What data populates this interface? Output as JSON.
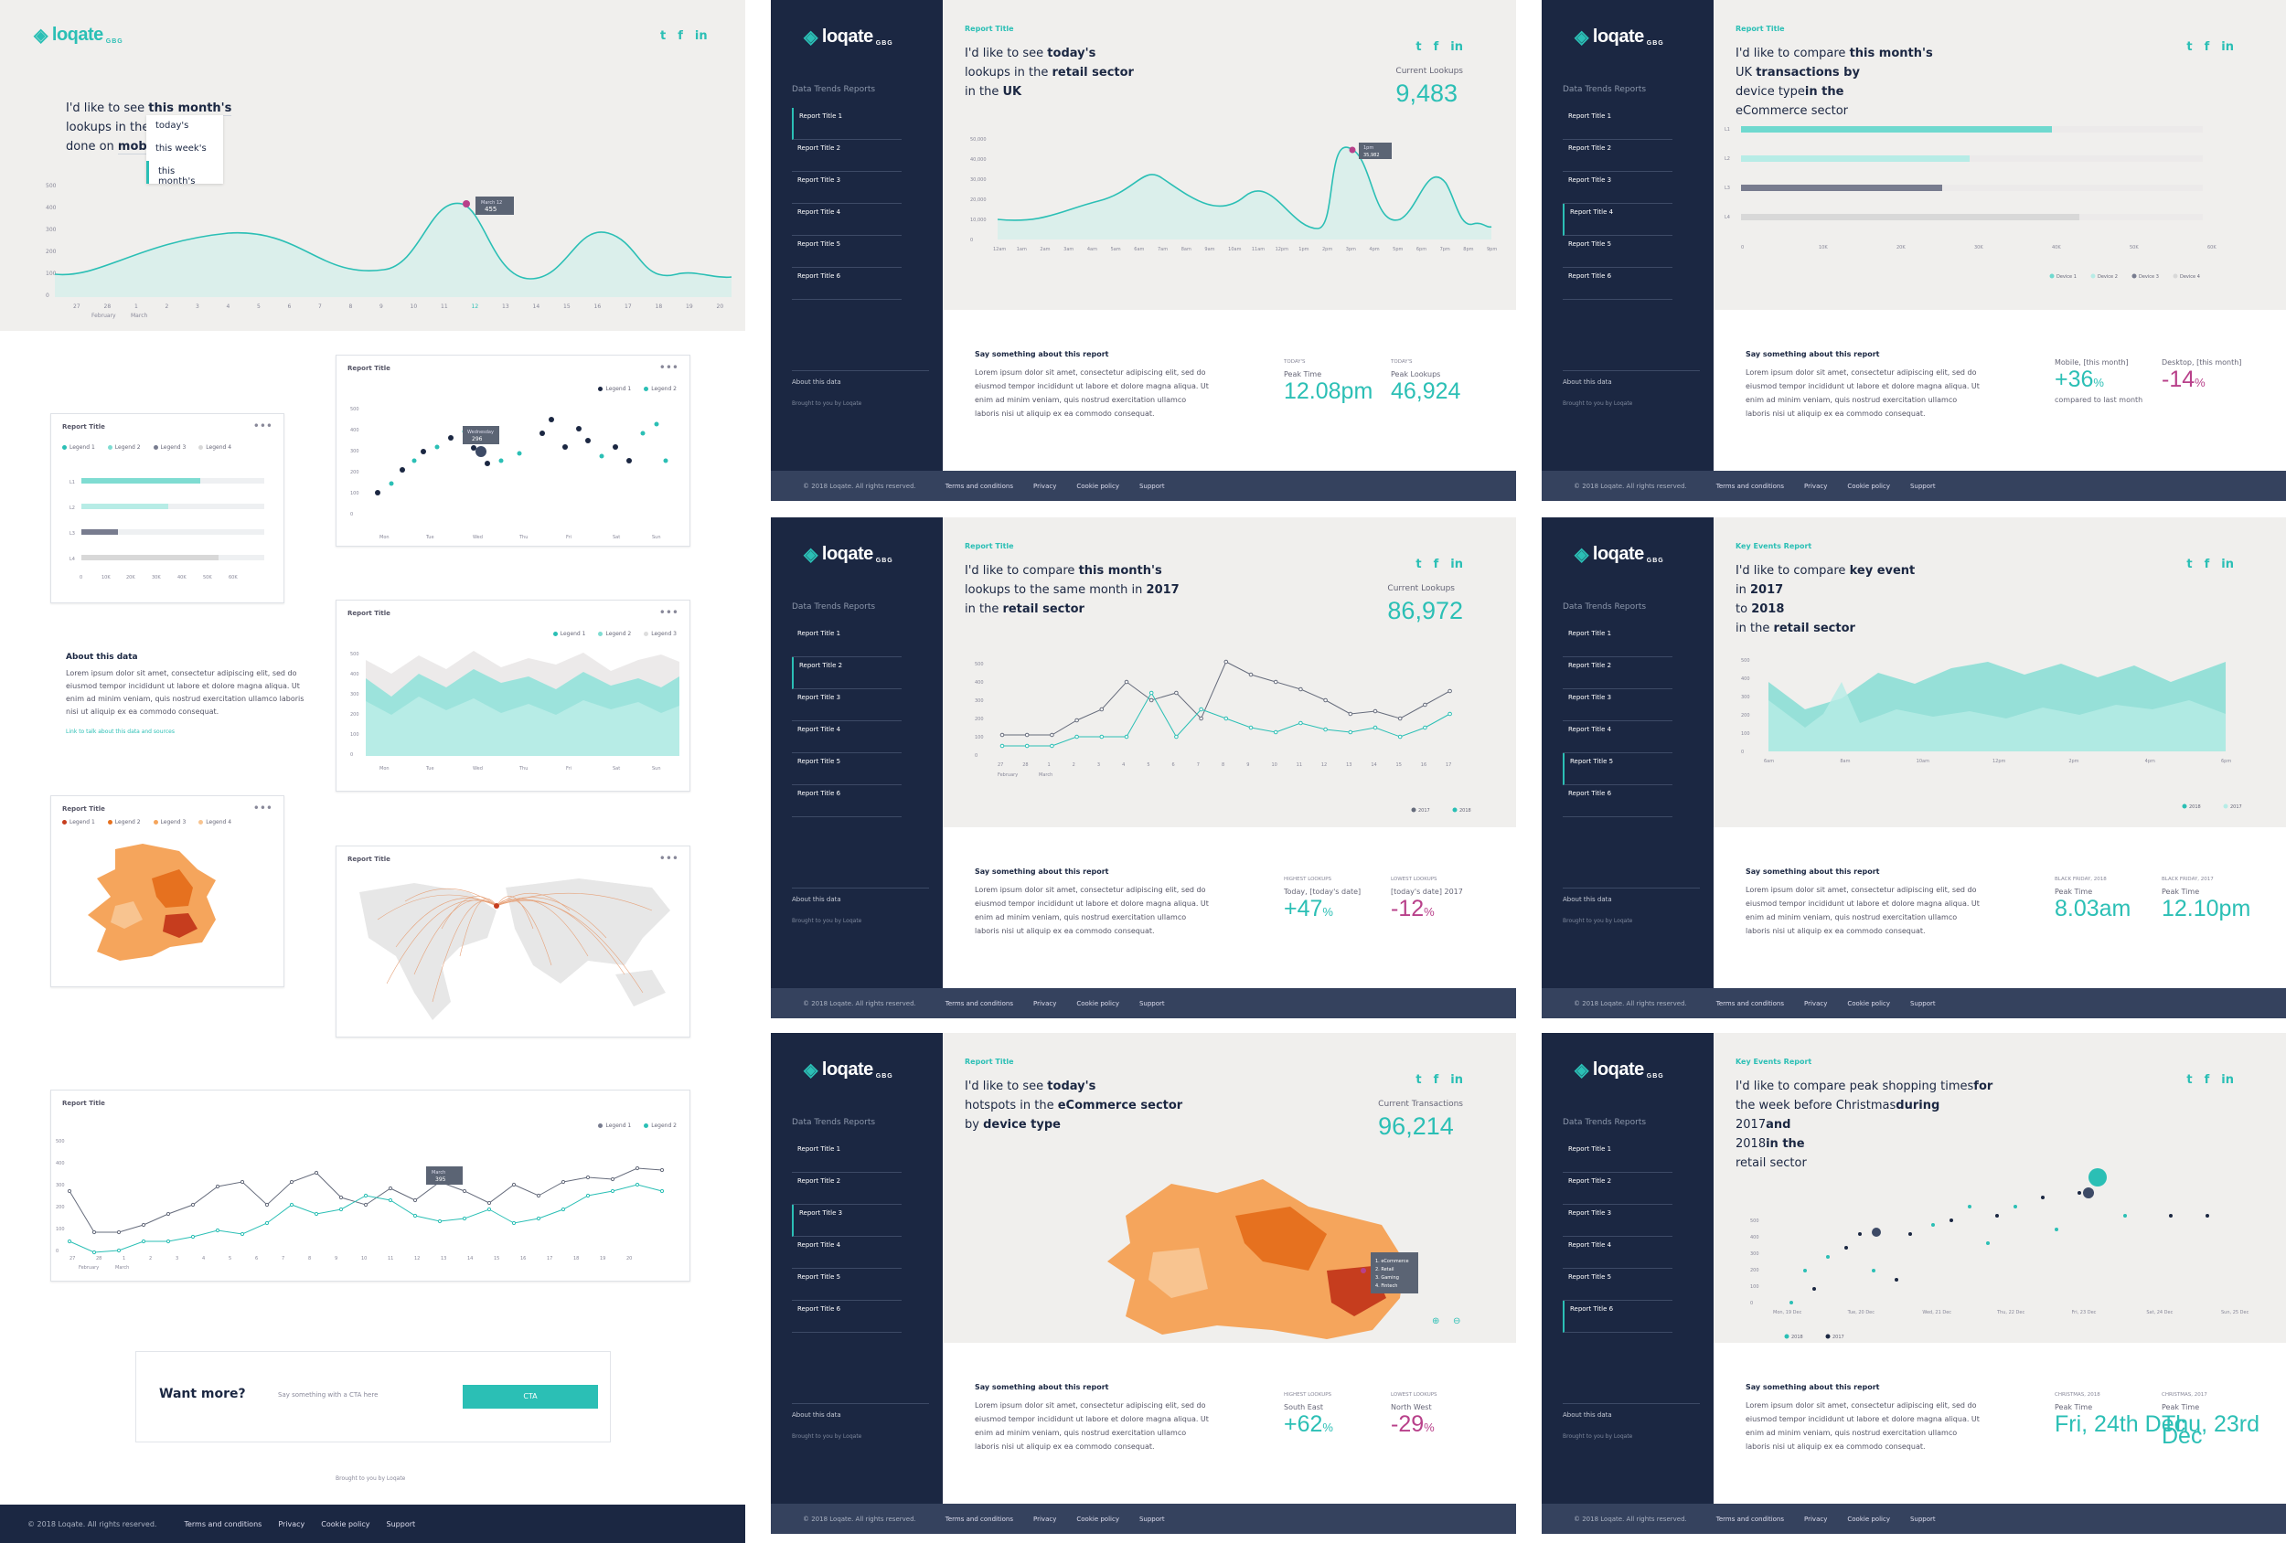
{
  "brand": {
    "logo": "loqate",
    "sub": "GBG"
  },
  "social": [
    "t",
    "f",
    "in"
  ],
  "hero": {
    "q1": "I'd like to see ",
    "b1": "this month's",
    "q2": "lookups in the ",
    "b2": "",
    "q3": "done on ",
    "b3": "mobi",
    "dropdown": [
      "today's",
      "this week's",
      "this month's"
    ],
    "tooltip_label": "March 12",
    "tooltip_value": "455",
    "yticks": [
      "500",
      "400",
      "300",
      "200",
      "100",
      "0"
    ],
    "xticks": [
      "27",
      "28",
      "1",
      "2",
      "3",
      "4",
      "5",
      "6",
      "7",
      "8",
      "9",
      "10",
      "11",
      "12",
      "13",
      "14",
      "15",
      "16",
      "17",
      "18",
      "19",
      "20"
    ],
    "months": [
      "February",
      "March"
    ]
  },
  "cards": {
    "hbar": {
      "title": "Report Title",
      "more": "•••",
      "legend": [
        "Legend 1",
        "Legend 2",
        "Legend 3",
        "Legend 4"
      ],
      "rows": [
        "L1",
        "L2",
        "L3",
        "L4"
      ],
      "xticks": [
        "0",
        "10K",
        "20K",
        "30K",
        "40K",
        "50K",
        "60K"
      ]
    },
    "scatter": {
      "title": "Report Title",
      "more": "•••",
      "legend": [
        "Legend 1",
        "Legend 2"
      ],
      "yticks": [
        "500",
        "400",
        "300",
        "200",
        "100",
        "0"
      ],
      "xticks": [
        "Mon",
        "Tue",
        "Wed",
        "Thu",
        "Fri",
        "Sat",
        "Sun"
      ],
      "tip_label": "Wednesday",
      "tip_value": "296"
    },
    "area": {
      "title": "Report Title",
      "more": "•••",
      "legend": [
        "Legend 1",
        "Legend 2",
        "Legend 3"
      ],
      "yticks": [
        "500",
        "400",
        "300",
        "200",
        "100",
        "0"
      ],
      "xticks": [
        "Mon",
        "Tue",
        "Wed",
        "Thu",
        "Fri",
        "Sat",
        "Sun"
      ]
    },
    "map": {
      "title": "Report Title",
      "more": "•••",
      "legend": [
        "Legend 1",
        "Legend 2",
        "Legend 3",
        "Legend 4"
      ]
    },
    "world": {
      "title": "Report Title",
      "more": "•••"
    },
    "line": {
      "title": "Report Title",
      "more": "•••",
      "legend": [
        "Legend 1",
        "Legend 2"
      ],
      "tip_label": "March",
      "tip_value": "395"
    }
  },
  "about": {
    "title": "About this data",
    "text": "Lorem ipsum dolor sit amet, consectetur adipiscing elit, sed do eiusmod tempor incididunt ut labore et dolore magna aliqua. Ut enim ad minim veniam, quis nostrud exercitation ullamco laboris nisi ut aliquip ex ea commodo consequat.",
    "link": "Link to talk about this data and sources"
  },
  "cta": {
    "title": "Want more?",
    "sub": "Say something with a CTA here",
    "button": "CTA",
    "brought": "Brought to you by Loqate"
  },
  "footer": {
    "copy": "© 2018 Loqate. All rights reserved.",
    "links": [
      "Terms and conditions",
      "Privacy",
      "Cookie policy",
      "Support"
    ]
  },
  "sidebar": {
    "heading": "Data Trends Reports",
    "items": [
      "Report Title 1",
      "Report Title 2",
      "Report Title 3",
      "Report Title 4",
      "Report Title 5",
      "Report Title 6"
    ],
    "about": "About this data",
    "brought": "Brought to you by Loqate"
  },
  "say": {
    "title": "Say something about this report",
    "text": "Lorem ipsum dolor sit amet, consectetur adipiscing elit, sed do eiusmod tempor incididunt ut labore et dolore magna aliqua. Ut enim ad minim veniam, quis nostrud exercitation ullamco laboris nisi ut aliquip ex ea commodo consequat."
  },
  "panels": [
    {
      "label": "Report Title",
      "q": [
        "I'd like to see ",
        "today's",
        "lookups in the ",
        "retail sector",
        "in the ",
        "UK"
      ],
      "cur_label": "Current Lookups",
      "cur_value": "9,483",
      "stats": [
        {
          "k": "Today's",
          "l": "Peak Time",
          "v": "12.08pm"
        },
        {
          "k": "Today's",
          "l": "Peak Lookups",
          "v": "46,924"
        }
      ],
      "yticks": [
        "50,000",
        "40,000",
        "30,000",
        "20,000",
        "10,000",
        "0"
      ],
      "xticks": [
        "12am",
        "1am",
        "2am",
        "3am",
        "4am",
        "5am",
        "6am",
        "7am",
        "8am",
        "9am",
        "10am",
        "11am",
        "12pm",
        "1pm",
        "2pm",
        "3pm",
        "4pm",
        "5pm",
        "6pm",
        "7pm",
        "8pm",
        "9pm"
      ],
      "tip_label": "1pm",
      "tip_value": "35,982"
    },
    {
      "label": "Report Title",
      "q": [
        "I'd like to compare ",
        "this month's",
        "UK ",
        "transactions by ",
        "device type",
        "in the ",
        "eCommerce sector"
      ],
      "stats": [
        {
          "l": "Mobile, [this month]",
          "v": "+36",
          "u": "%",
          "m": false,
          "cmp": "compared to last month"
        },
        {
          "l": "Desktop, [this month]",
          "v": "-14",
          "u": "%",
          "m": true
        }
      ],
      "rows": [
        "L1",
        "L2",
        "L3",
        "L4"
      ],
      "xticks": [
        "0",
        "10K",
        "20K",
        "30K",
        "40K",
        "50K",
        "60K"
      ],
      "legend": [
        "Device 1",
        "Device 2",
        "Device 3",
        "Device 4"
      ]
    },
    {
      "label": "Report Title",
      "q": [
        "I'd like to compare ",
        "this month's",
        "lookups to the same month in ",
        "2017",
        "in the ",
        "retail sector"
      ],
      "cur_label": "Current Lookups",
      "cur_value": "86,972",
      "stats": [
        {
          "k": "Highest lookups",
          "l": "Today, [today's date]",
          "v": "+47",
          "u": "%",
          "m": false
        },
        {
          "k": "Lowest lookups",
          "l": "[today's date] 2017",
          "v": "-12",
          "u": "%",
          "m": true
        }
      ],
      "yticks": [
        "500",
        "400",
        "300",
        "200",
        "100",
        "0"
      ],
      "xticks": [
        "27",
        "28",
        "1",
        "2",
        "3",
        "4",
        "5",
        "6",
        "7",
        "8",
        "9",
        "10",
        "11",
        "12",
        "13",
        "14",
        "15",
        "16",
        "17"
      ],
      "months": [
        "February",
        "March"
      ],
      "legend": [
        "2017",
        "2018"
      ]
    },
    {
      "label": "Key Events Report",
      "q": [
        "I'd like to compare ",
        "key event",
        "in ",
        "2017",
        "to ",
        "2018",
        "in the ",
        "retail sector"
      ],
      "stats": [
        {
          "k": "Black Friday, 2018",
          "l": "Peak Time",
          "v": "8.03am"
        },
        {
          "k": "Black Friday, 2017",
          "l": "Peak Time",
          "v": "12.10pm"
        }
      ],
      "yticks": [
        "500",
        "400",
        "300",
        "200",
        "100",
        "0"
      ],
      "xticks": [
        "6am",
        "8am",
        "10am",
        "12pm",
        "2pm",
        "4pm",
        "6pm"
      ],
      "legend": [
        "2018",
        "2017"
      ]
    },
    {
      "label": "Report Title",
      "q": [
        "I'd like to see ",
        "today's",
        "hotspots in the ",
        "eCommerce sector",
        "by ",
        "device type"
      ],
      "cur_label": "Current Transactions",
      "cur_value": "96,214",
      "stats": [
        {
          "k": "Highest lookups",
          "l": "South East",
          "v": "+62",
          "u": "%",
          "m": false
        },
        {
          "k": "Lowest lookups",
          "l": "North West",
          "v": "-29",
          "u": "%",
          "m": true
        }
      ],
      "tip": [
        "1. eCommerce",
        "2. Retail",
        "3. Gaming",
        "4. Fintech"
      ]
    },
    {
      "label": "Key Events Report",
      "q": [
        "I'd like to compare peak shopping times",
        "for ",
        "the week before Christmas",
        "during ",
        "2017",
        "and ",
        "2018",
        "in the ",
        "retail sector"
      ],
      "stats": [
        {
          "k": "Christmas, 2018",
          "l": "Peak Time",
          "v": "Fri, 24th Dec"
        },
        {
          "k": "Christmas, 2017",
          "l": "Peak Time",
          "v": "Thu, 23rd Dec"
        }
      ],
      "yticks": [
        "500",
        "400",
        "300",
        "200",
        "100",
        "0"
      ],
      "xticks": [
        "Mon, 19 Dec",
        "Tue, 20 Dec",
        "Wed, 21 Dec",
        "Thu, 22 Dec",
        "Fri, 23 Dec",
        "Sat, 24 Dec",
        "Sun, 25 Dec"
      ],
      "legend": [
        "2018",
        "2017"
      ]
    }
  ],
  "colors": {
    "teal": "#2bbfb5",
    "navy": "#1b2742",
    "magenta": "#b8408a",
    "orange": "#f5a55c"
  }
}
